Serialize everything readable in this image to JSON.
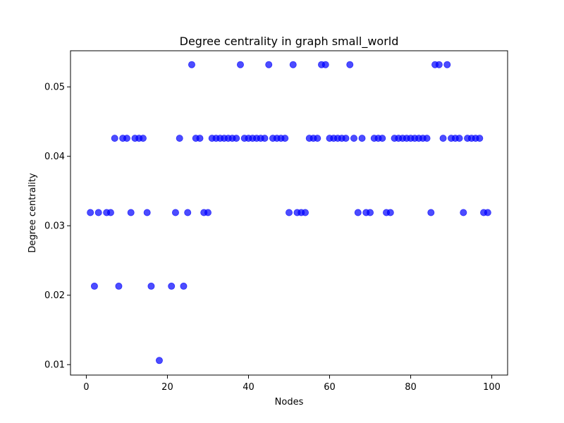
{
  "chart_data": {
    "type": "scatter",
    "title": "Degree centrality in graph small_world",
    "xlabel": "Nodes",
    "ylabel": "Degree centrality",
    "xlim": [
      -3.9,
      103.9
    ],
    "ylim": [
      0.0085,
      0.0552
    ],
    "xticks": [
      0,
      20,
      40,
      60,
      80,
      100
    ],
    "yticks": [
      0.01,
      0.02,
      0.03,
      0.04,
      0.05
    ],
    "ytick_labels": [
      "0.01",
      "0.02",
      "0.03",
      "0.04",
      "0.05"
    ],
    "grid": false,
    "marker_color": "#0000ff",
    "marker_opacity": 0.7,
    "series": [
      {
        "x": [
          1,
          2,
          3,
          5,
          6,
          7,
          8,
          9,
          10,
          11,
          12,
          13,
          14,
          15,
          16,
          18,
          21,
          22,
          23,
          24,
          25,
          26,
          27,
          28,
          29,
          30,
          31,
          32,
          33,
          34,
          35,
          36,
          37,
          38,
          39,
          40,
          41,
          42,
          43,
          44,
          45,
          46,
          47,
          48,
          49,
          50,
          51,
          52,
          53,
          54,
          55,
          56,
          57,
          58,
          59,
          60,
          61,
          62,
          63,
          64,
          65,
          66,
          67,
          68,
          69,
          70,
          71,
          72,
          73,
          74,
          75,
          76,
          77,
          78,
          79,
          80,
          81,
          82,
          83,
          84,
          85,
          86,
          87,
          88,
          89,
          90,
          91,
          92,
          93,
          94,
          95,
          96,
          97,
          98,
          99
        ],
        "y": [
          0.0319,
          0.0213,
          0.0319,
          0.0319,
          0.0319,
          0.0426,
          0.0213,
          0.0426,
          0.0426,
          0.0319,
          0.0426,
          0.0426,
          0.0426,
          0.0319,
          0.0213,
          0.0106,
          0.0213,
          0.0319,
          0.0426,
          0.0213,
          0.0319,
          0.0532,
          0.0426,
          0.0426,
          0.0319,
          0.0319,
          0.0426,
          0.0426,
          0.0426,
          0.0426,
          0.0426,
          0.0426,
          0.0426,
          0.0532,
          0.0426,
          0.0426,
          0.0426,
          0.0426,
          0.0426,
          0.0426,
          0.0532,
          0.0426,
          0.0426,
          0.0426,
          0.0426,
          0.0319,
          0.0532,
          0.0319,
          0.0319,
          0.0319,
          0.0426,
          0.0426,
          0.0426,
          0.0532,
          0.0532,
          0.0426,
          0.0426,
          0.0426,
          0.0426,
          0.0426,
          0.0532,
          0.0426,
          0.0319,
          0.0426,
          0.0319,
          0.0319,
          0.0426,
          0.0426,
          0.0426,
          0.0319,
          0.0319,
          0.0426,
          0.0426,
          0.0426,
          0.0426,
          0.0426,
          0.0426,
          0.0426,
          0.0426,
          0.0426,
          0.0319,
          0.0532,
          0.0532,
          0.0426,
          0.0532,
          0.0426,
          0.0426,
          0.0426,
          0.0319,
          0.0426,
          0.0426,
          0.0426,
          0.0426,
          0.0319,
          0.0319
        ]
      }
    ]
  }
}
